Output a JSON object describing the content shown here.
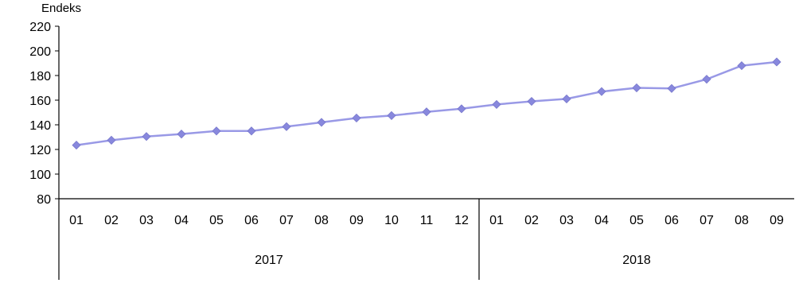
{
  "chart_data": {
    "type": "line",
    "title": "",
    "ylabel": "Endeks",
    "ylim": [
      80,
      220
    ],
    "yticks": [
      80,
      100,
      120,
      140,
      160,
      180,
      200,
      220
    ],
    "grid": false,
    "legend": "none",
    "categories": [
      "01",
      "02",
      "03",
      "04",
      "05",
      "06",
      "07",
      "08",
      "09",
      "10",
      "11",
      "12",
      "01",
      "02",
      "03",
      "04",
      "05",
      "06",
      "07",
      "08",
      "09"
    ],
    "groups": [
      {
        "label": "2017",
        "count": 12
      },
      {
        "label": "2018",
        "count": 9
      }
    ],
    "series": [
      {
        "values": [
          123.5,
          127.5,
          130.5,
          132.5,
          135,
          135,
          138.5,
          142,
          145.5,
          147.5,
          150.5,
          153,
          156.5,
          159,
          161,
          167,
          170,
          169.5,
          177,
          188,
          191
        ],
        "color": "#9999e6"
      }
    ]
  }
}
